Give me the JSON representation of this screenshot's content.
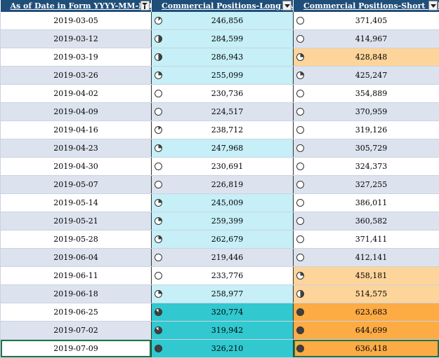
{
  "headers": {
    "date": "As of Date in Form YYYY-MM-DD",
    "long": "Commercial Positions-Long (All)",
    "short": "Commercial Positions-Short (All)"
  },
  "colors": {
    "header_bg": "#1f4e79",
    "band_alt": "#dce3ee",
    "long_light": "#c6eff7",
    "long_dark": "#31c8cf",
    "short_light": "#fdd49a",
    "short_dark": "#fcab45"
  },
  "rows": [
    {
      "date": "2019-03-05",
      "long": "246,856",
      "short": "371,405",
      "long_pie": 0.125,
      "short_pie": 0.0,
      "long_fill": "light",
      "short_fill": "none"
    },
    {
      "date": "2019-03-12",
      "long": "284,599",
      "short": "414,967",
      "long_pie": 0.5,
      "short_pie": 0.0,
      "long_fill": "light",
      "short_fill": "none"
    },
    {
      "date": "2019-03-19",
      "long": "286,943",
      "short": "428,848",
      "long_pie": 0.5,
      "short_pie": 0.25,
      "long_fill": "light",
      "short_fill": "light"
    },
    {
      "date": "2019-03-26",
      "long": "255,099",
      "short": "425,247",
      "long_pie": 0.25,
      "short_pie": 0.25,
      "long_fill": "light",
      "short_fill": "none"
    },
    {
      "date": "2019-04-02",
      "long": "230,736",
      "short": "354,889",
      "long_pie": 0.0,
      "short_pie": 0.0,
      "long_fill": "none",
      "short_fill": "none"
    },
    {
      "date": "2019-04-09",
      "long": "224,517",
      "short": "370,959",
      "long_pie": 0.0,
      "short_pie": 0.0,
      "long_fill": "none",
      "short_fill": "none"
    },
    {
      "date": "2019-04-16",
      "long": "238,712",
      "short": "319,126",
      "long_pie": 0.125,
      "short_pie": 0.0,
      "long_fill": "none",
      "short_fill": "none"
    },
    {
      "date": "2019-04-23",
      "long": "247,968",
      "short": "305,729",
      "long_pie": 0.25,
      "short_pie": 0.0,
      "long_fill": "light",
      "short_fill": "none"
    },
    {
      "date": "2019-04-30",
      "long": "230,691",
      "short": "324,373",
      "long_pie": 0.0,
      "short_pie": 0.0,
      "long_fill": "none",
      "short_fill": "none"
    },
    {
      "date": "2019-05-07",
      "long": "226,819",
      "short": "327,255",
      "long_pie": 0.0,
      "short_pie": 0.0,
      "long_fill": "none",
      "short_fill": "none"
    },
    {
      "date": "2019-05-14",
      "long": "245,009",
      "short": "386,011",
      "long_pie": 0.25,
      "short_pie": 0.0,
      "long_fill": "light",
      "short_fill": "none"
    },
    {
      "date": "2019-05-21",
      "long": "259,399",
      "short": "360,582",
      "long_pie": 0.25,
      "short_pie": 0.0,
      "long_fill": "light",
      "short_fill": "none"
    },
    {
      "date": "2019-05-28",
      "long": "262,679",
      "short": "371,411",
      "long_pie": 0.25,
      "short_pie": 0.0,
      "long_fill": "light",
      "short_fill": "none"
    },
    {
      "date": "2019-06-04",
      "long": "219,446",
      "short": "412,141",
      "long_pie": 0.0,
      "short_pie": 0.0,
      "long_fill": "none",
      "short_fill": "none"
    },
    {
      "date": "2019-06-11",
      "long": "233,776",
      "short": "458,181",
      "long_pie": 0.0,
      "short_pie": 0.25,
      "long_fill": "none",
      "short_fill": "light"
    },
    {
      "date": "2019-06-18",
      "long": "258,977",
      "short": "514,575",
      "long_pie": 0.25,
      "short_pie": 0.5,
      "long_fill": "light",
      "short_fill": "light"
    },
    {
      "date": "2019-06-25",
      "long": "320,774",
      "short": "623,683",
      "long_pie": 0.875,
      "short_pie": 1.0,
      "long_fill": "dark",
      "short_fill": "dark"
    },
    {
      "date": "2019-07-02",
      "long": "319,942",
      "short": "644,699",
      "long_pie": 0.875,
      "short_pie": 1.0,
      "long_fill": "dark",
      "short_fill": "dark"
    },
    {
      "date": "2019-07-09",
      "long": "326,210",
      "short": "636,418",
      "long_pie": 1.0,
      "short_pie": 1.0,
      "long_fill": "dark",
      "short_fill": "dark"
    }
  ]
}
